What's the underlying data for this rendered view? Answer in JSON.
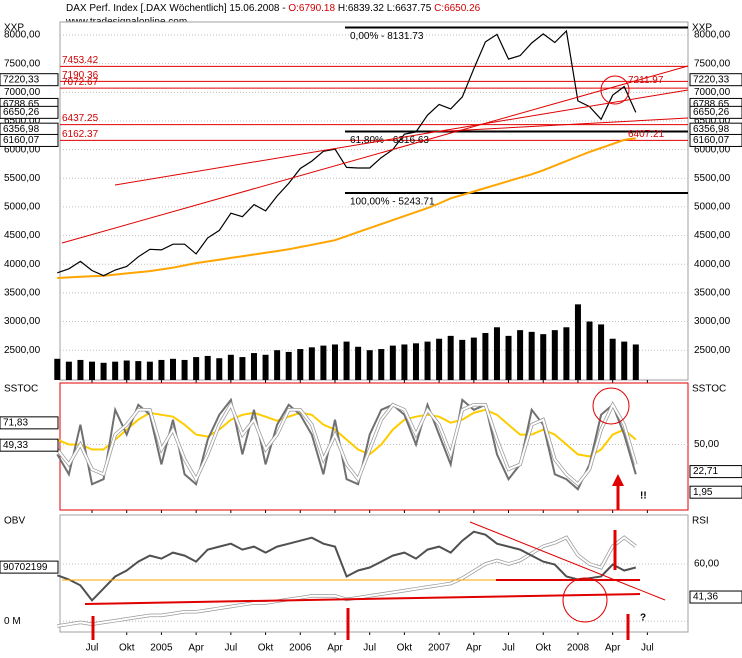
{
  "chart_data": [
    {
      "type": "line",
      "title": "DAX Perf. Index [.DAX  Wöchentlich] 15.06.2008 -",
      "ohlc": [
        "O:6790.18",
        "H:6839.32",
        "L:6637.75",
        "C:6650.26"
      ],
      "source": "www.tradesignalonline.com",
      "y_label": "XXP",
      "categories": [
        null,
        null,
        null,
        "Jul",
        null,
        null,
        "Okt",
        null,
        null,
        "2005",
        null,
        null,
        "Apr",
        null,
        null,
        "Jul",
        null,
        null,
        "Okt",
        null,
        null,
        "2006",
        null,
        null,
        "Apr",
        null,
        null,
        "Jul",
        null,
        null,
        "Okt",
        null,
        null,
        "2007",
        null,
        null,
        "Apr",
        null,
        null,
        "Jul",
        null,
        null,
        "Okt",
        null,
        null,
        "2008",
        null,
        null,
        "Apr",
        null,
        null,
        "Jul"
      ],
      "ylim": [
        1980,
        8227
      ],
      "ytick_sides": [
        "left",
        "right"
      ],
      "yticks": [
        {
          "value": 2500,
          "label": "2500,00"
        },
        {
          "value": 3000,
          "label": "3000,00"
        },
        {
          "value": 3500,
          "label": "3500,00"
        },
        {
          "value": 4000,
          "label": "4000,00"
        },
        {
          "value": 4500,
          "label": "4500,00"
        },
        {
          "value": 5000,
          "label": "5000,00"
        },
        {
          "value": 5500,
          "label": "5500,00"
        },
        {
          "value": 6000,
          "label": "6000,00"
        },
        {
          "value": 6500,
          "label": "6500,00"
        },
        {
          "value": 7000,
          "label": "7000,00"
        },
        {
          "value": 7500,
          "label": "7500,00"
        },
        {
          "value": 8000,
          "label": "8000,00"
        }
      ],
      "series": [
        {
          "type": "bar",
          "color": "#000000",
          "values": [
            2350,
            2300,
            2330,
            2300,
            2280,
            2300,
            2320,
            2310,
            2300,
            2330,
            2350,
            2330,
            2380,
            2400,
            2360,
            2420,
            2380,
            2450,
            2420,
            2500,
            2470,
            2520,
            2550,
            2580,
            2600,
            2650,
            2560,
            2500,
            2520,
            2580,
            2600,
            2620,
            2650,
            2700,
            2750,
            2680,
            2720,
            2800,
            2900,
            2750,
            2850,
            2820,
            2780,
            2850,
            2900,
            3300,
            3000,
            2950,
            2700,
            2650,
            2600,
            null
          ]
        },
        {
          "type": "line",
          "color": "#ffa500",
          "values": [
            3760,
            3770,
            3780,
            3790,
            3800,
            3820,
            3840,
            3860,
            3880,
            3910,
            3940,
            3980,
            4020,
            4050,
            4080,
            4110,
            4140,
            4170,
            4200,
            4230,
            4260,
            4300,
            4340,
            4380,
            4420,
            4490,
            4560,
            4630,
            4700,
            4770,
            4840,
            4910,
            4980,
            5060,
            5150,
            5210,
            5270,
            5330,
            5390,
            5450,
            5510,
            5570,
            5640,
            5720,
            5800,
            5880,
            5960,
            6030,
            6100,
            6170,
            6200,
            null
          ]
        },
        {
          "type": "line",
          "color": "#000000",
          "values": [
            3850,
            3920,
            4050,
            3890,
            3800,
            3900,
            3960,
            4130,
            4260,
            4250,
            4350,
            4350,
            4180,
            4460,
            4590,
            4890,
            4830,
            5040,
            4930,
            5190,
            5410,
            5670,
            5800,
            5970,
            6010,
            5690,
            5680,
            5680,
            5860,
            6000,
            6270,
            6310,
            6600,
            6790,
            6710,
            6920,
            7410,
            7880,
            8010,
            7580,
            7640,
            7860,
            8020,
            7870,
            8070,
            6850,
            6750,
            6530,
            6950,
            7100,
            6650,
            null
          ]
        }
      ],
      "levels": [
        7453.42,
        7190.36,
        7072.67,
        6437.25,
        6162.37
      ],
      "fib_levels": [
        {
          "value": 8131.73,
          "label": "0,00% - 8131.73"
        },
        {
          "value": 6316.63,
          "label": "61,80% - 6316.63"
        },
        {
          "value": 5243.71,
          "label": "100,00% - 5243.71"
        }
      ],
      "callouts": [
        7211.97,
        6407.21
      ],
      "right_boxes": [
        {
          "value": 7220.33,
          "label": "7220,33"
        },
        {
          "value": 6788.65,
          "label": "6788,65"
        },
        {
          "value": 6650.26,
          "label": "6650,26"
        },
        {
          "value": 6356.98,
          "label": "6356,98"
        },
        {
          "value": 6160.07,
          "label": "6160,07"
        }
      ],
      "mirror_boxes": true
    },
    {
      "type": "line",
      "y_label": "SSTOC",
      "ylim": [
        -16,
        112
      ],
      "ytick_sides": [
        "left",
        "right"
      ],
      "frame_color": "#e00000",
      "yticks": [
        {
          "value": 50,
          "label": "50,00"
        }
      ],
      "tick_sides": [
        "right"
      ],
      "series": [
        {
          "type": "line",
          "color": "#ffcc00",
          "values": [
            55,
            50,
            50,
            45,
            45,
            55,
            65,
            75,
            82,
            80,
            78,
            70,
            60,
            58,
            65,
            75,
            80,
            82,
            78,
            74,
            78,
            82,
            80,
            70,
            65,
            55,
            45,
            40,
            50,
            65,
            75,
            78,
            80,
            78,
            72,
            75,
            82,
            85,
            80,
            70,
            60,
            60,
            65,
            60,
            50,
            40,
            38,
            45,
            60,
            65,
            55,
            null
          ]
        },
        {
          "type": "line",
          "color": "#707070",
          "values": [
            40,
            20,
            70,
            10,
            15,
            85,
            60,
            90,
            80,
            30,
            75,
            20,
            10,
            55,
            80,
            95,
            40,
            85,
            30,
            70,
            90,
            80,
            60,
            20,
            75,
            15,
            10,
            60,
            85,
            90,
            80,
            50,
            90,
            60,
            30,
            95,
            85,
            90,
            40,
            15,
            30,
            85,
            70,
            20,
            15,
            5,
            30,
            80,
            90,
            60,
            20,
            null
          ]
        },
        {
          "type": "line",
          "color": "#ffffff",
          "values": [
            45,
            30,
            50,
            25,
            20,
            60,
            70,
            85,
            85,
            45,
            65,
            35,
            15,
            40,
            70,
            90,
            60,
            75,
            45,
            60,
            85,
            85,
            70,
            35,
            60,
            30,
            15,
            45,
            75,
            90,
            85,
            60,
            85,
            70,
            40,
            85,
            90,
            90,
            55,
            25,
            30,
            70,
            75,
            35,
            20,
            10,
            25,
            65,
            90,
            70,
            30,
            null
          ]
        }
      ],
      "left_boxes": [
        {
          "value": 71.83,
          "label": "71,83"
        },
        {
          "value": 49.33,
          "label": "49,33"
        }
      ],
      "right_boxes": [
        {
          "value": 22.71,
          "label": "22,71"
        },
        {
          "value": 1.95,
          "label": "1,95"
        }
      ],
      "annotation": "!!"
    },
    {
      "type": "line",
      "y_label": "OBV",
      "y2_label": "RSI",
      "ylim": [
        -18000000,
        178000000
      ],
      "y2lim": [
        21.6,
        87.7
      ],
      "ytick_sides": [
        "left"
      ],
      "yticks": [
        {
          "value": 0,
          "label": "0 M"
        }
      ],
      "y2ticks": [
        {
          "value": 60,
          "label": "60,00"
        }
      ],
      "series": [
        {
          "type": "line",
          "color": "#ffffff",
          "axis": "y2",
          "values": [
            25,
            26,
            27,
            26,
            27,
            28,
            29,
            30,
            31,
            31,
            32,
            33,
            33,
            34,
            35,
            36,
            37,
            38,
            38,
            39,
            40,
            41,
            42,
            42,
            42,
            40,
            41,
            42,
            43,
            44,
            45,
            46,
            47,
            48,
            49,
            52,
            56,
            60,
            62,
            60,
            62,
            66,
            70,
            72,
            75,
            65,
            60,
            58,
            70,
            75,
            70,
            null
          ]
        },
        {
          "type": "line",
          "color": "#505050",
          "values": [
            77000000,
            70000000,
            60000000,
            35000000,
            55000000,
            75000000,
            85000000,
            100000000,
            110000000,
            105000000,
            115000000,
            110000000,
            100000000,
            120000000,
            125000000,
            130000000,
            120000000,
            125000000,
            115000000,
            125000000,
            130000000,
            135000000,
            140000000,
            130000000,
            125000000,
            75000000,
            85000000,
            90000000,
            100000000,
            110000000,
            115000000,
            105000000,
            120000000,
            125000000,
            115000000,
            135000000,
            150000000,
            145000000,
            130000000,
            125000000,
            120000000,
            110000000,
            100000000,
            95000000,
            75000000,
            70000000,
            72000000,
            75000000,
            95000000,
            85000000,
            90000000,
            null
          ]
        }
      ],
      "left_boxes": [
        90702199
      ],
      "right_boxes": [
        {
          "value": 41.36,
          "label": "41,36",
          "axis": "y2"
        }
      ],
      "annotation": "?"
    }
  ]
}
